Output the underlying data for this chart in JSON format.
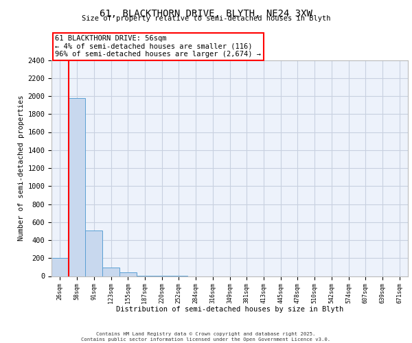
{
  "title": "61, BLACKTHORN DRIVE, BLYTH, NE24 3XW",
  "subtitle": "Size of property relative to semi-detached houses in Blyth",
  "xlabel": "Distribution of semi-detached houses by size in Blyth",
  "ylabel": "Number of semi-detached properties",
  "categories": [
    "26sqm",
    "58sqm",
    "91sqm",
    "123sqm",
    "155sqm",
    "187sqm",
    "220sqm",
    "252sqm",
    "284sqm",
    "316sqm",
    "349sqm",
    "381sqm",
    "413sqm",
    "445sqm",
    "478sqm",
    "510sqm",
    "542sqm",
    "574sqm",
    "607sqm",
    "639sqm",
    "671sqm"
  ],
  "values": [
    200,
    1980,
    505,
    97,
    40,
    5,
    2,
    1,
    0,
    0,
    0,
    0,
    0,
    0,
    0,
    0,
    0,
    0,
    0,
    0,
    0
  ],
  "bar_color": "#c8d8ee",
  "bar_edge_color": "#5a9fd4",
  "red_line_x": 0.5,
  "annotation_text": "61 BLACKTHORN DRIVE: 56sqm\n← 4% of semi-detached houses are smaller (116)\n96% of semi-detached houses are larger (2,674) →",
  "ylim": [
    0,
    2400
  ],
  "yticks": [
    0,
    200,
    400,
    600,
    800,
    1000,
    1200,
    1400,
    1600,
    1800,
    2000,
    2200,
    2400
  ],
  "background_color": "#edf2fb",
  "grid_color": "#c8d0e0",
  "footer_line1": "Contains HM Land Registry data © Crown copyright and database right 2025.",
  "footer_line2": "Contains public sector information licensed under the Open Government Licence v3.0."
}
